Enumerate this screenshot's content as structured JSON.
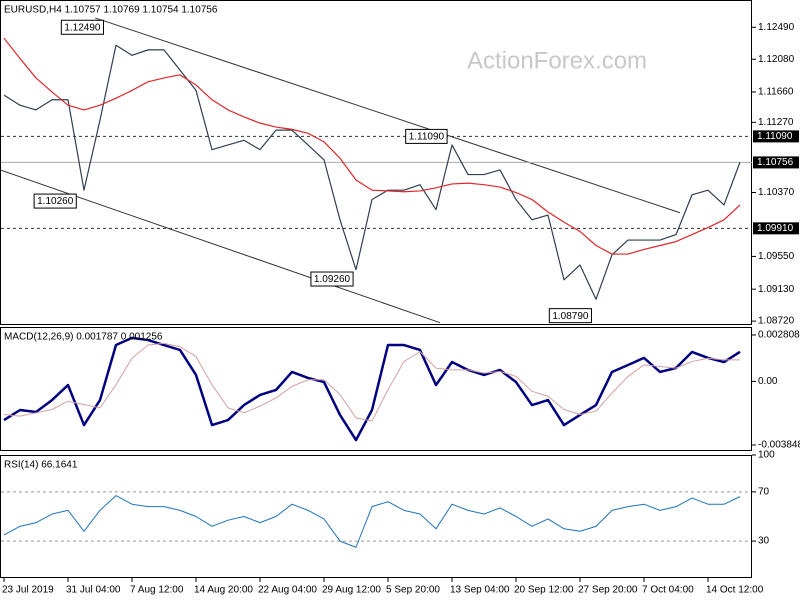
{
  "chart_data": [
    {
      "type": "line",
      "title": "EURUSD,H4  1.10757 1.10769 1.10754 1.10756",
      "watermark": "ActionForex.com",
      "series": [
        {
          "color": "#2f3f4f",
          "values": [
            1.1162,
            1.1149,
            1.1143,
            1.1156,
            1.1156,
            1.104,
            1.113,
            1.1226,
            1.1213,
            1.122,
            1.122,
            1.1194,
            1.1168,
            1.1092,
            1.1098,
            1.1104,
            1.1092,
            1.1117,
            1.1117,
            1.1098,
            1.1079,
            1.1002,
            1.0938,
            1.1028,
            1.104,
            1.104,
            1.1047,
            1.1015,
            1.1098,
            1.106,
            1.106,
            1.1066,
            1.1028,
            1.1002,
            1.1008,
            1.0925,
            1.0944,
            1.09,
            1.0957,
            1.0976,
            1.0976,
            1.0976,
            1.0983,
            1.1034,
            1.104,
            1.1021,
            1.1076
          ]
        },
        {
          "color": "#e0262a",
          "values": [
            1.1235,
            1.1209,
            1.1184,
            1.1166,
            1.1149,
            1.1143,
            1.1149,
            1.1158,
            1.1168,
            1.1179,
            1.1184,
            1.1188,
            1.1175,
            1.1156,
            1.1143,
            1.1134,
            1.1126,
            1.1121,
            1.1118,
            1.1113,
            1.1102,
            1.1081,
            1.1053,
            1.104,
            1.1039,
            1.1038,
            1.1039,
            1.1043,
            1.1048,
            1.1049,
            1.1047,
            1.1044,
            1.1037,
            1.1028,
            1.1012,
            1.0999,
            1.0987,
            1.0969,
            1.0958,
            1.0958,
            1.0964,
            1.0969,
            1.0974,
            1.0983,
            1.0992,
            1.1002,
            1.1021
          ]
        }
      ],
      "ylim": [
        1.0867,
        1.1284
      ],
      "yticks": [
        {
          "value": 1.1249,
          "label": "1.12490"
        },
        {
          "value": 1.1208,
          "label": "1.12080"
        },
        {
          "value": 1.1166,
          "label": "1.11660"
        },
        {
          "value": 1.1127,
          "label": "1.11270"
        },
        {
          "value": 1.1037,
          "label": "1.10370"
        },
        {
          "value": 1.0955,
          "label": "1.09550"
        },
        {
          "value": 1.0913,
          "label": "1.09130"
        },
        {
          "value": 1.0872,
          "label": "1.08720"
        }
      ],
      "grid": false,
      "trendlines": [
        {
          "start": [
            5.7,
            1.1261
          ],
          "end": [
            42.25,
            1.1011
          ]
        },
        {
          "start": [
            -0.25,
            1.1066
          ],
          "end": [
            27.25,
            1.087
          ]
        }
      ],
      "levels": [
        {
          "value": 1.1109,
          "label": "1.11090"
        },
        {
          "value": 1.0991,
          "label": "1.09910"
        }
      ],
      "last": {
        "value": 1.10756,
        "label": "1.10756"
      },
      "annotations": [
        {
          "x": 4.9,
          "value": 1.1249,
          "label": "1.12490"
        },
        {
          "x": 3.2,
          "value": 1.1026,
          "label": "1.10260"
        },
        {
          "x": 20.5,
          "value": 1.0926,
          "label": "1.09260"
        },
        {
          "x": 26.4,
          "value": 1.1109,
          "label": "1.11090"
        },
        {
          "x": 35.4,
          "value": 1.0879,
          "label": "1.08790"
        }
      ]
    },
    {
      "type": "line",
      "title": "MACD(12,26,9) 0.001787 0.001256",
      "series": [
        {
          "color": "#000080",
          "values": [
            -0.00234,
            -0.00173,
            -0.00185,
            -0.00113,
            -0.00022,
            -0.00264,
            -0.00113,
            0.0022,
            0.00263,
            0.0025,
            0.0022,
            0.0019,
            0.00039,
            -0.00264,
            -0.00234,
            -0.00143,
            -0.00082,
            -0.00052,
            0.00057,
            0.00021,
            -4e-05,
            -0.00203,
            -0.00355,
            -0.00173,
            0.0022,
            0.0022,
            0.0019,
            -0.00022,
            0.00117,
            0.00069,
            0.00039,
            0.00069,
            -4e-05,
            -0.00143,
            -0.00113,
            -0.00264,
            -0.00203,
            -0.00143,
            0.00057,
            0.00099,
            0.00142,
            0.00057,
            0.00081,
            0.00178,
            0.00142,
            0.00117,
            0.00179
          ]
        },
        {
          "color": "#d4a0a0",
          "values": [
            -0.002,
            -0.0021,
            -0.0019,
            -0.0017,
            -0.0012,
            -0.0014,
            -0.0016,
            -0.0002,
            0.0014,
            0.0022,
            0.0023,
            0.0021,
            0.0015,
            -0.0002,
            -0.0016,
            -0.0019,
            -0.0015,
            -0.001,
            -0.0003,
            0.0001,
            0.0001,
            -0.0008,
            -0.0022,
            -0.0024,
            -0.0005,
            0.0012,
            0.0018,
            0.0008,
            0.0007,
            0.0007,
            0.0005,
            0.0006,
            0.0003,
            -0.0006,
            -0.0009,
            -0.0017,
            -0.002,
            -0.0018,
            -0.0007,
            0.0003,
            0.001,
            0.0009,
            0.0008,
            0.0012,
            0.0014,
            0.0013,
            0.0013
          ]
        }
      ],
      "ylim": [
        -0.00421,
        0.00329
      ],
      "yticks": [
        0.002808,
        {
          "value": 0,
          "label": "0.00"
        },
        -0.003848
      ],
      "grid": false
    },
    {
      "type": "line",
      "title": "RSI(14) 66.1641",
      "categories": [
        "23 Jul 2019",
        null,
        null,
        null,
        "31 Jul 04:00",
        null,
        null,
        null,
        "7 Aug 12:00",
        null,
        null,
        null,
        "14 Aug 20:00",
        null,
        null,
        null,
        "22 Aug 04:00",
        null,
        null,
        null,
        "29 Aug 12:00",
        null,
        null,
        null,
        "5 Sep 20:00",
        null,
        null,
        null,
        "13 Sep 04:00",
        null,
        null,
        null,
        "20 Sep 12:00",
        null,
        null,
        null,
        "27 Sep 20:00",
        null,
        null,
        null,
        "7 Oct 04:00",
        null,
        null,
        null,
        "14 Oct 12:00",
        null,
        null
      ],
      "series": [
        {
          "color": "#1e73be",
          "values": [
            35,
            42,
            45,
            52,
            55,
            38,
            55,
            67,
            60,
            58,
            58,
            55,
            50,
            42,
            47,
            50,
            45,
            50,
            60,
            55,
            48,
            30,
            25,
            58,
            62,
            55,
            52,
            40,
            60,
            55,
            52,
            57,
            50,
            42,
            48,
            40,
            38,
            42,
            55,
            58,
            60,
            55,
            58,
            65,
            60,
            60,
            66.1641
          ]
        }
      ],
      "ylim": [
        0,
        100
      ],
      "yticks": [
        100,
        70,
        30
      ],
      "grid": true
    }
  ]
}
